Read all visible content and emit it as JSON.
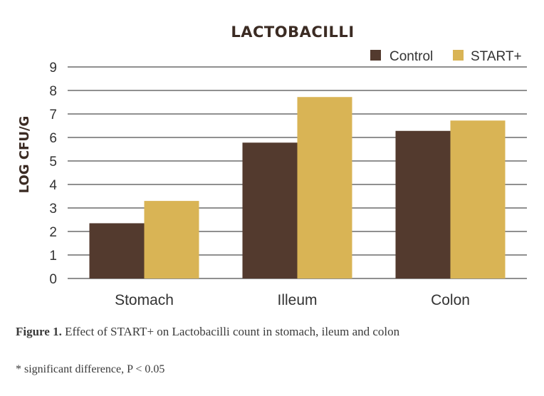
{
  "chart_data": {
    "type": "bar",
    "title": "LACTOBACILLI",
    "ylabel": "LOG CFU/G",
    "xlabel": "",
    "categories": [
      "Stomach",
      "Illeum",
      "Colon"
    ],
    "series": [
      {
        "name": "Control",
        "color": "#533a2e",
        "values": [
          2.35,
          5.78,
          6.28
        ]
      },
      {
        "name": "START+",
        "color": "#d9b455",
        "values": [
          3.3,
          7.72,
          6.72
        ]
      }
    ],
    "ylim": [
      0,
      9
    ],
    "yticks": [
      "0",
      "1",
      "2",
      "3",
      "4",
      "5",
      "6",
      "7",
      "8",
      "9"
    ],
    "grid": true,
    "legend_position": "top-right"
  },
  "caption": {
    "label": "Figure 1.",
    "text": " Effect of START+ on Lactobacilli count in stomach, ileum and colon"
  },
  "footnote": "* significant difference, P < 0.05"
}
